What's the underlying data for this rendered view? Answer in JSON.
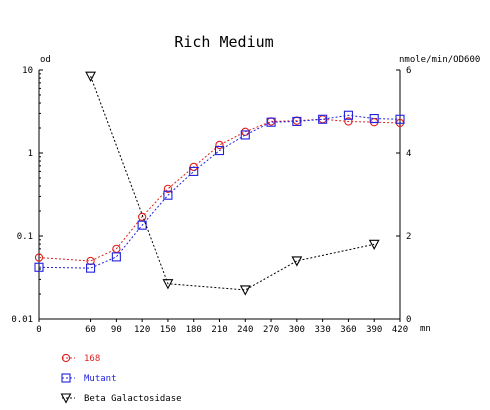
{
  "chart_data": {
    "type": "line",
    "title": "Rich Medium",
    "y_left_unit": "od",
    "y_right_unit": "nmole/min/OD600",
    "x_unit": "mn",
    "x_ticks": [
      "0",
      "60",
      "90",
      "120",
      "150",
      "180",
      "210",
      "240",
      "270",
      "300",
      "330",
      "360",
      "390",
      "420"
    ],
    "xlim": [
      0,
      420
    ],
    "y_left_ticks": [
      "0.01",
      "0.1",
      "1",
      "10"
    ],
    "y_left_scale": "log",
    "y_left_lim": [
      0.01,
      10
    ],
    "y_right_ticks": [
      "0",
      "2",
      "4",
      "6"
    ],
    "y_right_lim": [
      0,
      6
    ],
    "grid": false,
    "legend_position": "bottom-left",
    "series": [
      {
        "name": "168",
        "axis": "left",
        "color": "#e02020",
        "marker": "circle",
        "line_style": "dashed",
        "x": [
          0,
          60,
          90,
          120,
          150,
          180,
          210,
          240,
          270,
          300,
          330,
          360,
          390,
          420
        ],
        "y": [
          0.055,
          0.05,
          0.07,
          0.17,
          0.37,
          0.68,
          1.25,
          1.8,
          2.4,
          2.45,
          2.55,
          2.4,
          2.35,
          2.3
        ]
      },
      {
        "name": "Mutant",
        "axis": "left",
        "color": "#2020e0",
        "marker": "square",
        "line_style": "dashed",
        "x": [
          0,
          60,
          90,
          120,
          150,
          180,
          210,
          240,
          270,
          300,
          330,
          360,
          390,
          420
        ],
        "y": [
          0.042,
          0.041,
          0.056,
          0.135,
          0.31,
          0.6,
          1.07,
          1.65,
          2.35,
          2.4,
          2.55,
          2.85,
          2.6,
          2.55
        ]
      },
      {
        "name": "Beta Galactosidase",
        "axis": "right",
        "color": "#000000",
        "marker": "triangle-down",
        "line_style": "dashed",
        "x": [
          60,
          150,
          240,
          300,
          390
        ],
        "y": [
          5.85,
          0.85,
          0.7,
          1.4,
          1.8
        ]
      }
    ]
  }
}
